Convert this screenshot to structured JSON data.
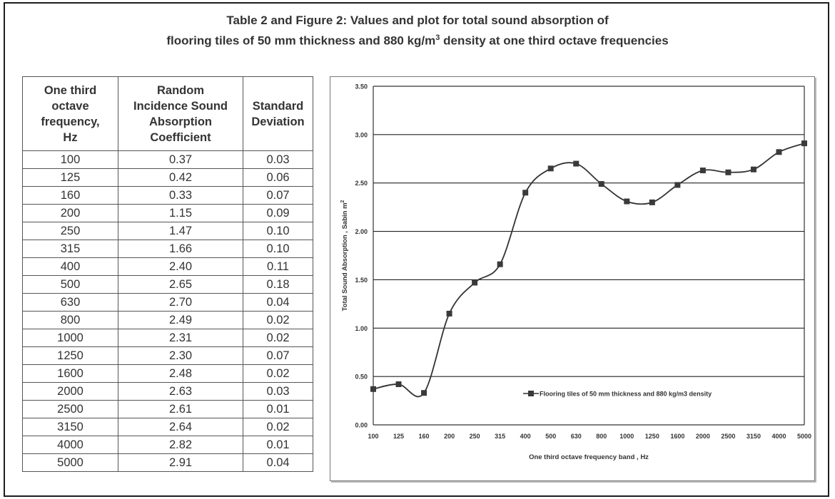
{
  "title": {
    "line1": "Table 2 and Figure 2: Values and plot for total sound absorption of",
    "line2_pre": "flooring tiles of 50 mm thickness and 880 kg/m",
    "line2_sup": "3",
    "line2_post": " density at one third octave frequencies"
  },
  "table": {
    "headers": [
      [
        "One third",
        "octave",
        "frequency,",
        "Hz"
      ],
      [
        "Random",
        "Incidence Sound",
        "Absorption",
        "Coefficient"
      ],
      [
        "Standard",
        "Deviation"
      ]
    ],
    "rows": [
      [
        "100",
        "0.37",
        "0.03"
      ],
      [
        "125",
        "0.42",
        "0.06"
      ],
      [
        "160",
        "0.33",
        "0.07"
      ],
      [
        "200",
        "1.15",
        "0.09"
      ],
      [
        "250",
        "1.47",
        "0.10"
      ],
      [
        "315",
        "1.66",
        "0.10"
      ],
      [
        "400",
        "2.40",
        "0.11"
      ],
      [
        "500",
        "2.65",
        "0.18"
      ],
      [
        "630",
        "2.70",
        "0.04"
      ],
      [
        "800",
        "2.49",
        "0.02"
      ],
      [
        "1000",
        "2.31",
        "0.02"
      ],
      [
        "1250",
        "2.30",
        "0.07"
      ],
      [
        "1600",
        "2.48",
        "0.02"
      ],
      [
        "2000",
        "2.63",
        "0.03"
      ],
      [
        "2500",
        "2.61",
        "0.01"
      ],
      [
        "3150",
        "2.64",
        "0.02"
      ],
      [
        "4000",
        "2.82",
        "0.01"
      ],
      [
        "5000",
        "2.91",
        "0.04"
      ]
    ]
  },
  "chart_data": {
    "type": "line",
    "xlabel": "One third octave frequency band , Hz",
    "ylabel": "Total Sound Absorption , Sabin m",
    "ylabel_sup": "2",
    "categories": [
      "100",
      "125",
      "160",
      "200",
      "250",
      "315",
      "400",
      "500",
      "630",
      "800",
      "1000",
      "1250",
      "1600",
      "2000",
      "2500",
      "3150",
      "4000",
      "5000"
    ],
    "series": [
      {
        "name": "Flooring tiles of 50 mm thickness and 880 kg/m3 density",
        "values": [
          0.37,
          0.42,
          0.33,
          1.15,
          1.47,
          1.66,
          2.4,
          2.65,
          2.7,
          2.49,
          2.31,
          2.3,
          2.48,
          2.63,
          2.61,
          2.64,
          2.82,
          2.91
        ]
      }
    ],
    "ylim": [
      0,
      3.5
    ],
    "yticks": [
      "0.00",
      "0.50",
      "1.00",
      "1.50",
      "2.00",
      "2.50",
      "3.00",
      "3.50"
    ],
    "grid": true,
    "legend_position": "inside-lower-right",
    "colors": {
      "line": "#333333",
      "marker": "#3a3a3a",
      "grid": "#222222"
    }
  }
}
